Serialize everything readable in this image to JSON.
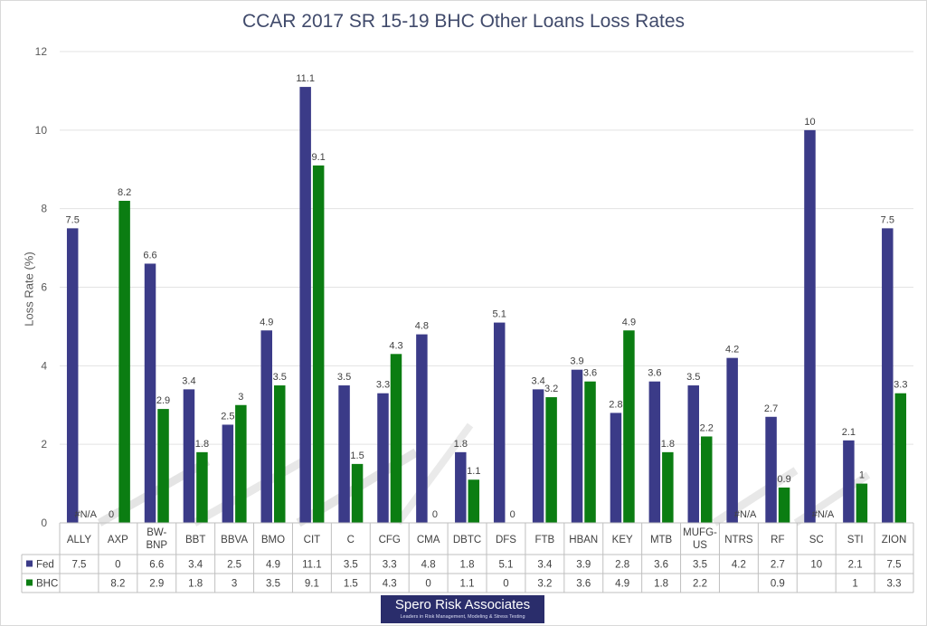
{
  "chart_data": {
    "type": "bar",
    "title": "CCAR 2017 SR 15-19 BHC Other Loans Loss Rates",
    "ylabel": "Loss Rate (%)",
    "ylim": [
      0,
      12
    ],
    "yticks": [
      "0",
      "2",
      "4",
      "6",
      "8",
      "10",
      "12"
    ],
    "grid": true,
    "legend": "data-table",
    "categories": [
      "ALLY",
      "AXP",
      "BW-BNP",
      "BBT",
      "BBVA",
      "BMO",
      "CIT",
      "C",
      "CFG",
      "CMA",
      "DBTC",
      "DFS",
      "FTB",
      "HBAN",
      "KEY",
      "MTB",
      "MUFG-US",
      "NTRS",
      "RF",
      "SC",
      "STI",
      "ZION"
    ],
    "category_lines": [
      [
        "ALLY"
      ],
      [
        "AXP"
      ],
      [
        "BW-",
        "BNP"
      ],
      [
        "BBT"
      ],
      [
        "BBVA"
      ],
      [
        "BMO"
      ],
      [
        "CIT"
      ],
      [
        "C"
      ],
      [
        "CFG"
      ],
      [
        "CMA"
      ],
      [
        "DBTC"
      ],
      [
        "DFS"
      ],
      [
        "FTB"
      ],
      [
        "HBAN"
      ],
      [
        "KEY"
      ],
      [
        "MTB"
      ],
      [
        "MUFG-",
        "US"
      ],
      [
        "NTRS"
      ],
      [
        "RF"
      ],
      [
        "SC"
      ],
      [
        "STI"
      ],
      [
        "ZION"
      ]
    ],
    "series": [
      {
        "name": "Fed",
        "color": "#3b3b88",
        "values": [
          7.5,
          0,
          6.6,
          3.4,
          2.5,
          4.9,
          11.1,
          3.5,
          3.3,
          4.8,
          1.8,
          5.1,
          3.4,
          3.9,
          2.8,
          3.6,
          3.5,
          4.2,
          2.7,
          10,
          2.1,
          7.5
        ],
        "labels": [
          "7.5",
          "0",
          "6.6",
          "3.4",
          "2.5",
          "4.9",
          "11.1",
          "3.5",
          "3.3",
          "4.8",
          "1.8",
          "5.1",
          "3.4",
          "3.9",
          "2.8",
          "3.6",
          "3.5",
          "4.2",
          "2.7",
          "10",
          "2.1",
          "7.5"
        ]
      },
      {
        "name": "BHC",
        "color": "#0b7d12",
        "values": [
          null,
          8.2,
          2.9,
          1.8,
          3,
          3.5,
          9.1,
          1.5,
          4.3,
          0,
          1.1,
          0,
          3.2,
          3.6,
          4.9,
          1.8,
          2.2,
          null,
          0.9,
          null,
          1,
          3.3
        ],
        "labels": [
          "#N/A",
          "8.2",
          "2.9",
          "1.8",
          "3",
          "3.5",
          "9.1",
          "1.5",
          "4.3",
          "0",
          "1.1",
          "0",
          "3.2",
          "3.6",
          "4.9",
          "1.8",
          "2.2",
          "#N/A",
          "0.9",
          "#N/A",
          "1",
          "3.3"
        ],
        "table": [
          "",
          "8.2",
          "2.9",
          "1.8",
          "3",
          "3.5",
          "9.1",
          "1.5",
          "4.3",
          "0",
          "1.1",
          "0",
          "3.2",
          "3.6",
          "4.9",
          "1.8",
          "2.2",
          "",
          "0.9",
          "",
          "1",
          "3.3"
        ]
      }
    ]
  },
  "logo": {
    "name": "Spero Risk Associates",
    "tagline": "Leaders in Risk Management, Modeling & Stress Testing"
  }
}
